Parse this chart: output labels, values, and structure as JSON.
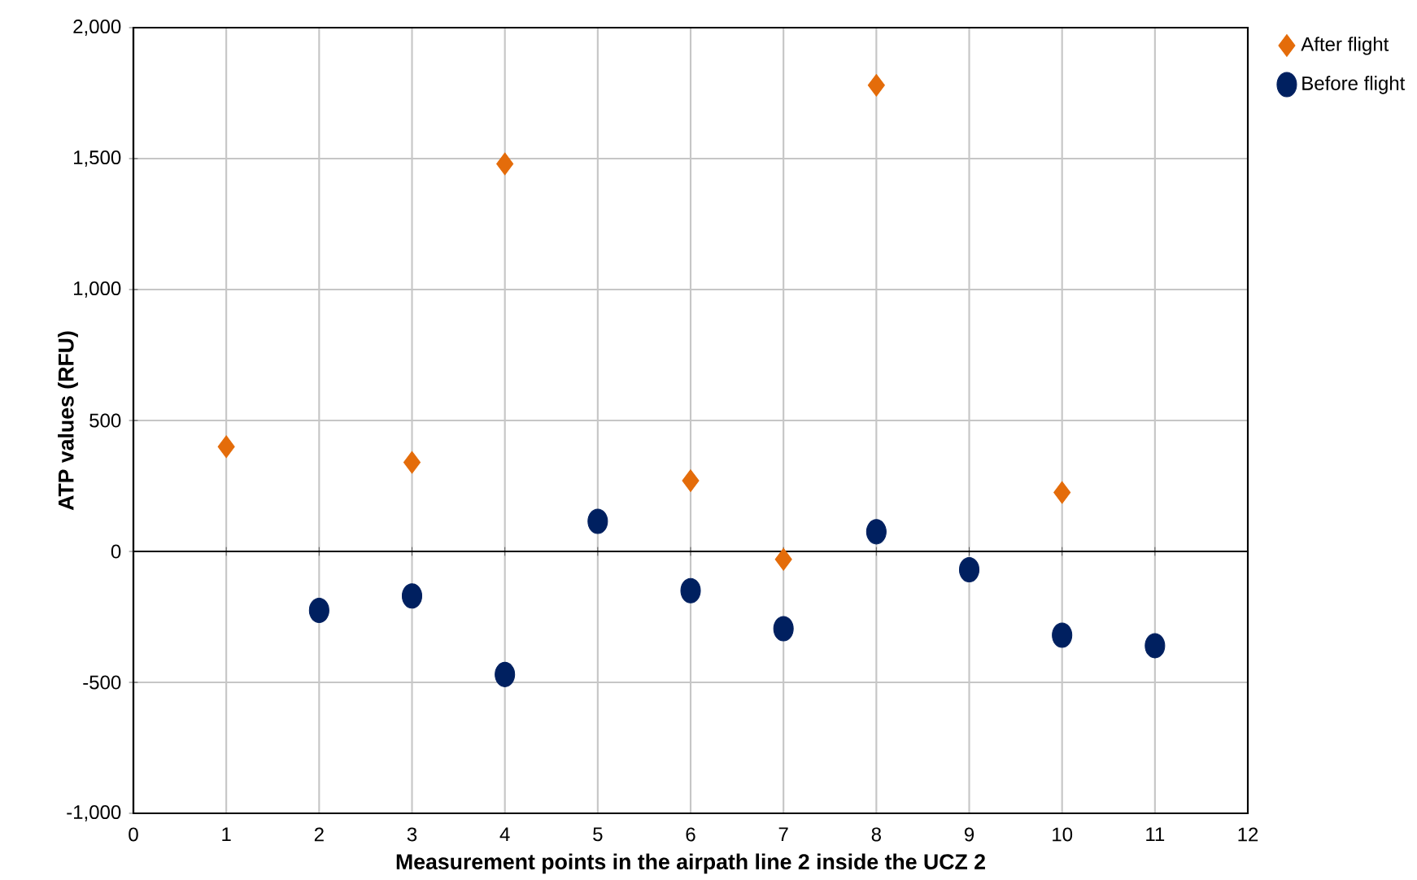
{
  "chart_data": {
    "type": "scatter",
    "xlabel": "Measurement points in the airpath line 2 inside the UCZ 2",
    "ylabel": "ATP values (RFU)",
    "series": [
      {
        "name": "After flight",
        "color": "#e46c0a",
        "marker": "diamond",
        "x": [
          1,
          3,
          4,
          6,
          7,
          8,
          10
        ],
        "values": [
          400,
          340,
          1480,
          270,
          -30,
          1780,
          225
        ]
      },
      {
        "name": "Before flight",
        "color": "#002060",
        "marker": "circle",
        "x": [
          2,
          3,
          4,
          5,
          6,
          7,
          8,
          9,
          10,
          11
        ],
        "values": [
          -225,
          -170,
          -470,
          115,
          -150,
          -295,
          75,
          -70,
          -320,
          -360
        ]
      }
    ],
    "xlim": [
      0,
      12
    ],
    "xticks": [
      0,
      1,
      2,
      3,
      4,
      5,
      6,
      7,
      8,
      9,
      10,
      11,
      12
    ],
    "ylim": [
      -1000,
      2000
    ],
    "yticks": [
      {
        "value": -1000,
        "label": "-1,000"
      },
      {
        "value": -500,
        "label": "-500"
      },
      {
        "value": 0,
        "label": "0"
      },
      {
        "value": 500,
        "label": "500"
      },
      {
        "value": 1000,
        "label": "1,000"
      },
      {
        "value": 1500,
        "label": "1,500"
      },
      {
        "value": 2000,
        "label": "2,000"
      }
    ],
    "grid": true,
    "legend": "top right"
  }
}
